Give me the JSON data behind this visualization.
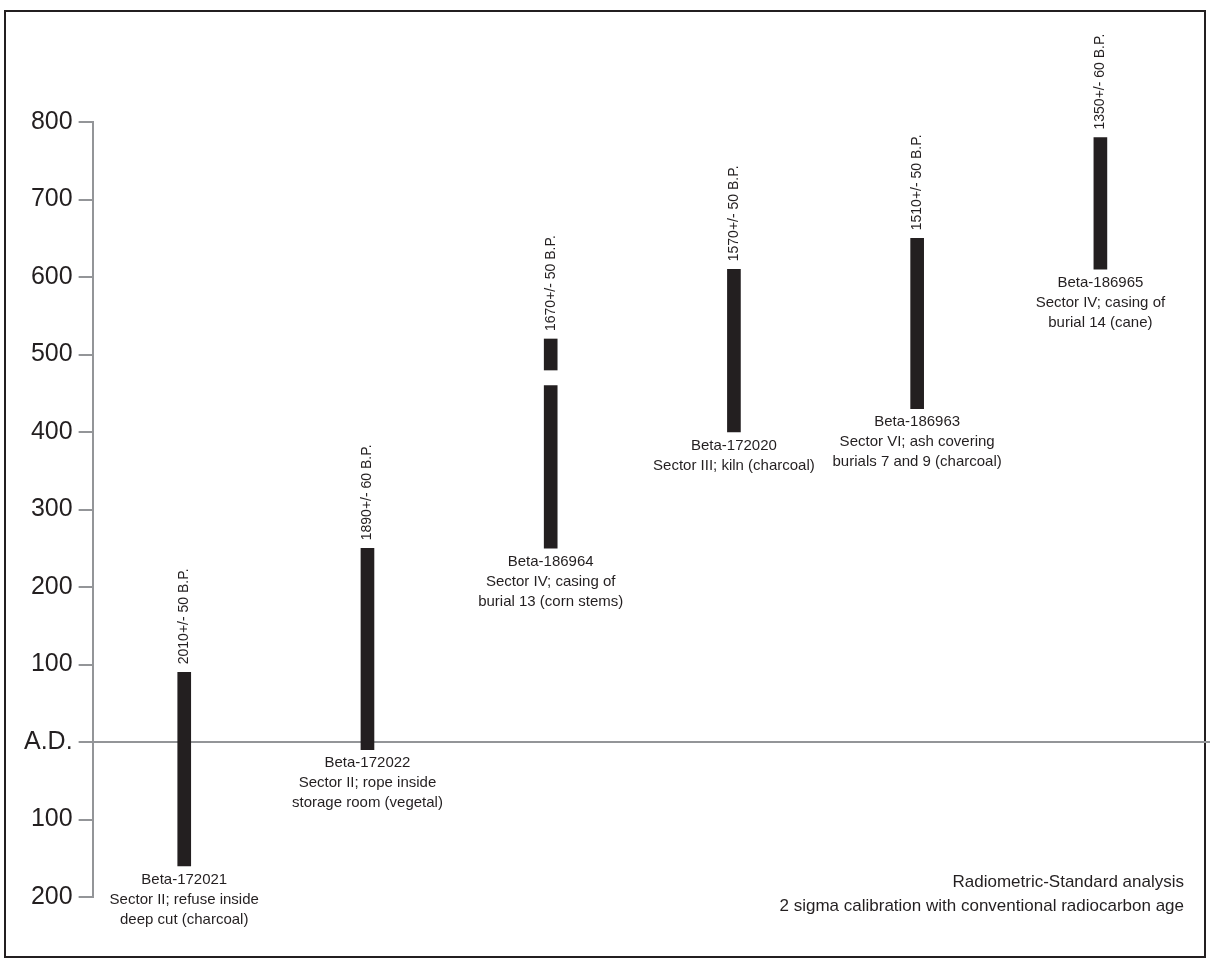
{
  "chart_data": {
    "type": "bar",
    "categories": [
      "Beta-172021\nSector II; refuse inside\ndeep cut (charcoal)",
      "Beta-172022\nSector II; rope inside\nstorage room (vegetal)",
      "Beta-186964\nSector IV; casing of\nburial 13 (corn stems)",
      "Beta-172020\nSector III; kiln (charcoal)",
      "Beta-186963\nSector VI; ash covering\nburials 7 and 9 (charcoal)",
      "Beta-186965\nSector IV; casing of\nburial 14 (cane)"
    ],
    "series": [
      {
        "color": "#231f20",
        "base": [
          -160,
          -10,
          250,
          400,
          430,
          610
        ],
        "values": [
          250,
          260,
          210,
          210,
          220,
          170
        ]
      },
      {
        "color": "#231f20",
        "base": [
          null,
          null,
          480,
          null,
          null,
          null
        ],
        "values": [
          null,
          null,
          40,
          null,
          null,
          null
        ]
      }
    ],
    "ylim": [
      -200,
      800
    ],
    "yticks": [
      800,
      700,
      600,
      500,
      400,
      300,
      200,
      100,
      {
        "value": 0,
        "label": "A.D."
      },
      {
        "value": -100,
        "label": "100"
      },
      {
        "value": -200,
        "label": "200"
      }
    ],
    "ref_lines": [
      {
        "axis": "y",
        "value": 0,
        "color": "#939598"
      }
    ],
    "grid": false,
    "legend": false,
    "annotations": [
      {
        "text": "2010+/- 50 B.P.",
        "x": "Beta-172021\nSector II; refuse inside\ndeep cut (charcoal)",
        "y": 90
      },
      {
        "text": "1890+/- 60 B.P.",
        "x": "Beta-172022\nSector II; rope inside\nstorage room (vegetal)",
        "y": 250
      },
      {
        "text": "1670+/- 50 B.P.",
        "x": "Beta-186964\nSector IV; casing of\nburial 13 (corn stems)",
        "y": 520
      },
      {
        "text": "1570+/- 50 B.P.",
        "x": "Beta-172020\nSector III; kiln (charcoal)",
        "y": 610
      },
      {
        "text": "1510+/- 50 B.P.",
        "x": "Beta-186963\nSector VI; ash covering\nburials 7 and 9 (charcoal)",
        "y": 650
      },
      {
        "text": "1350+/- 60 B.P.",
        "x": "Beta-186965\nSector IV; casing of\nburial 14 (cane)",
        "y": 780
      },
      "Radiometric-Standard analysis",
      "2 sigma calibration with conventional radiocarbon age"
    ]
  }
}
